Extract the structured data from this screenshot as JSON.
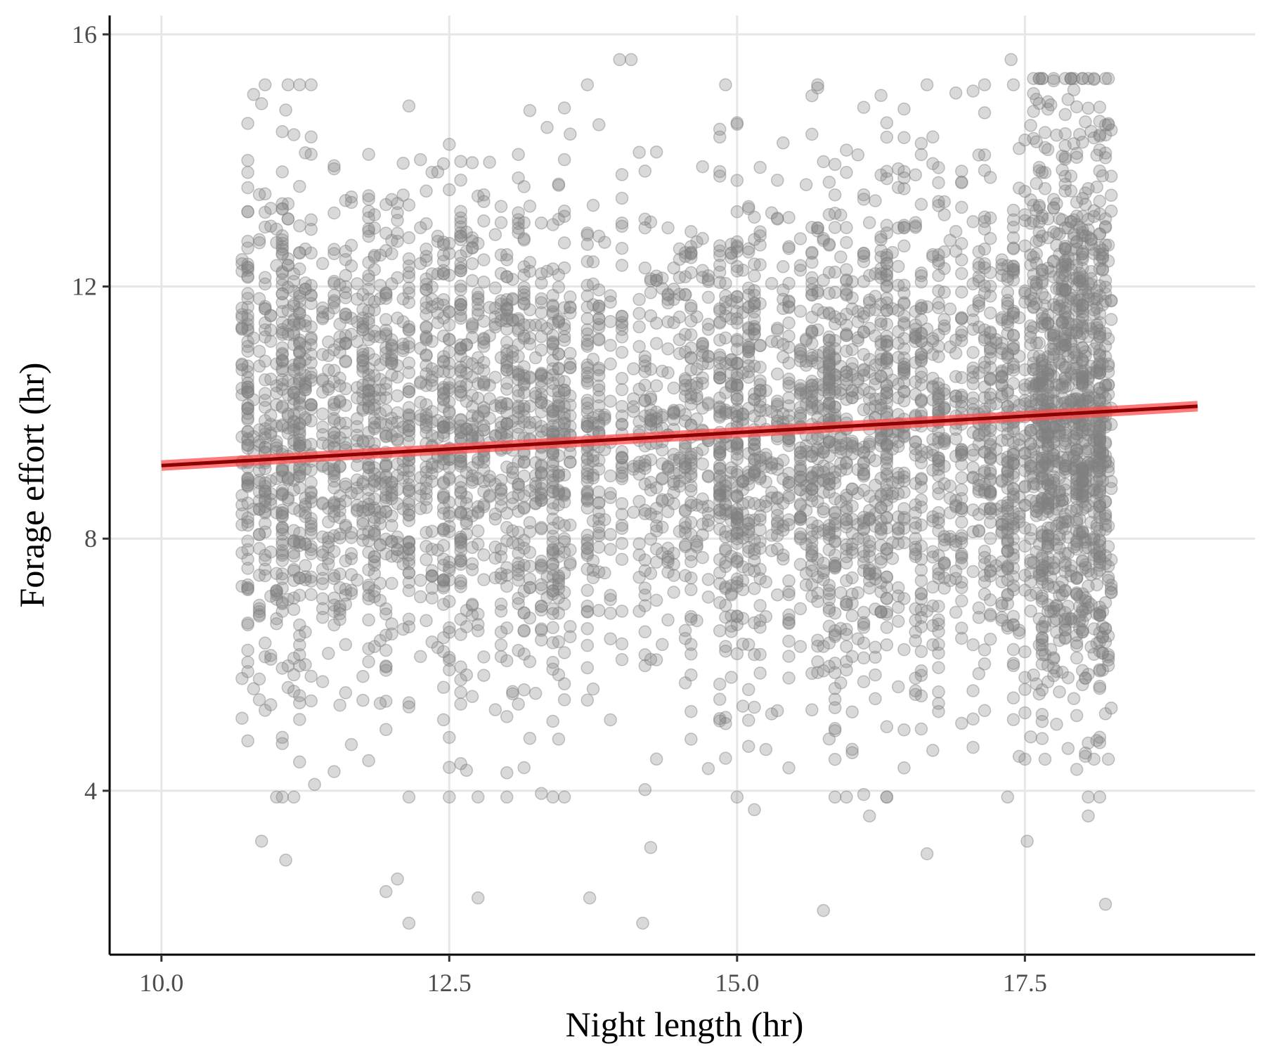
{
  "chart_data": {
    "type": "scatter",
    "title": "",
    "xlabel": "Night length (hr)",
    "ylabel": "Forage effort (hr)",
    "xlim": [
      9.55,
      19.5
    ],
    "ylim": [
      1.4,
      16.3
    ],
    "xticks": [
      10.0,
      12.5,
      15.0,
      17.5
    ],
    "xtick_labels": [
      "10.0",
      "12.5",
      "15.0",
      "17.5"
    ],
    "yticks": [
      4,
      8,
      12,
      16
    ],
    "ytick_labels": [
      "4",
      "8",
      "12",
      "16"
    ],
    "grid": true,
    "legend": "none",
    "point_color": "#808080",
    "point_opacity": 0.3,
    "points_note_n_approx": 6000,
    "point_distribution": {
      "x_range": [
        10.7,
        18.25
      ],
      "y_center_approx": 9.6,
      "y_sd_approx": 2.0,
      "y_range": [
        1.9,
        15.7
      ],
      "x_density_higher_near": 18.0
    },
    "fit_line": {
      "color": "#8b0000",
      "ribbon_color": "#ff4d4d",
      "x": [
        10.0,
        19.0
      ],
      "y": [
        9.16,
        10.1
      ]
    },
    "sample_points": [
      {
        "x": 10.75,
        "y": 14.0
      },
      {
        "x": 10.87,
        "y": 14.9
      },
      {
        "x": 11.08,
        "y": 14.8
      },
      {
        "x": 13.98,
        "y": 15.6
      },
      {
        "x": 14.08,
        "y": 15.6
      },
      {
        "x": 17.38,
        "y": 15.6
      },
      {
        "x": 18.2,
        "y": 15.3
      },
      {
        "x": 10.87,
        "y": 3.2
      },
      {
        "x": 11.08,
        "y": 2.9
      },
      {
        "x": 11.95,
        "y": 2.4
      },
      {
        "x": 12.05,
        "y": 2.6
      },
      {
        "x": 12.15,
        "y": 1.9
      },
      {
        "x": 12.75,
        "y": 2.3
      },
      {
        "x": 13.72,
        "y": 2.3
      },
      {
        "x": 14.18,
        "y": 1.9
      },
      {
        "x": 14.25,
        "y": 3.1
      },
      {
        "x": 15.75,
        "y": 2.1
      },
      {
        "x": 16.65,
        "y": 3.0
      },
      {
        "x": 17.52,
        "y": 3.2
      },
      {
        "x": 18.2,
        "y": 2.2
      },
      {
        "x": 18.05,
        "y": 3.6
      },
      {
        "x": 11.33,
        "y": 4.1
      },
      {
        "x": 15.15,
        "y": 3.7
      },
      {
        "x": 16.15,
        "y": 3.6
      }
    ]
  }
}
